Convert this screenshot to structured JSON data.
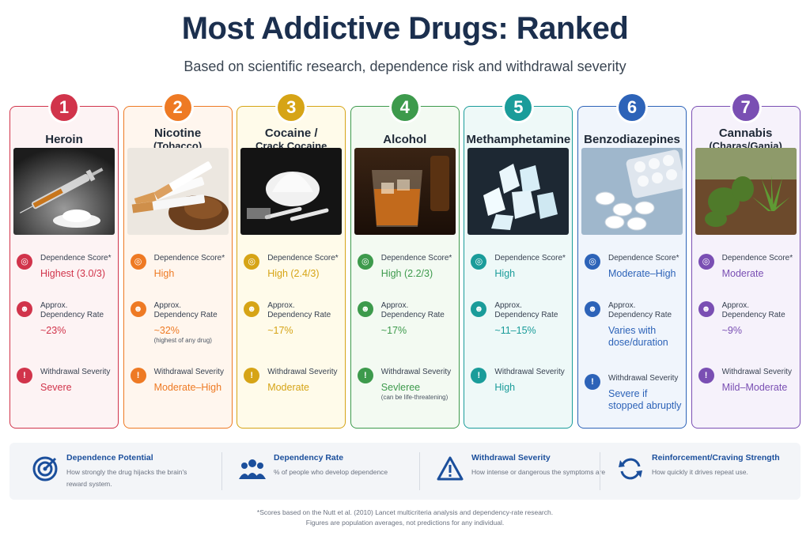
{
  "title": "Most Addictive Drugs: Ranked",
  "subtitle": "Based on scientific research, dependence risk and withdrawal severity",
  "metric_labels": {
    "dependence": "Dependence Score*",
    "rate_line1": "Approx.",
    "rate_line2": "Dependency Rate",
    "withdrawal": "Withdrawal Severity"
  },
  "drugs": [
    {
      "rank": "1",
      "name": "Heroin",
      "sub": "",
      "color": "#d1344b",
      "bg": "#fdf3f4",
      "dependence": "Highest (3.0/3)",
      "rate": "~23%",
      "rate_note": "",
      "withdrawal": "Severe",
      "withdrawal_note": "",
      "photo": "syringe-powder"
    },
    {
      "rank": "2",
      "name": "Nicotine",
      "sub": "(Tobacco)",
      "color": "#ee7a24",
      "bg": "#fff6ee",
      "dependence": "High",
      "rate": "~32%",
      "rate_note": "(highest of any drug)",
      "withdrawal": "Moderate–High",
      "withdrawal_note": "",
      "photo": "cigarettes"
    },
    {
      "rank": "3",
      "name": "Cocaine /",
      "sub": "Crack Cocaine",
      "color": "#d6a416",
      "bg": "#fffbea",
      "dependence": "High (2.4/3)",
      "rate": "~17%",
      "rate_note": "",
      "withdrawal": "Moderate",
      "withdrawal_note": "",
      "photo": "white-powder"
    },
    {
      "rank": "4",
      "name": "Alcohol",
      "sub": "",
      "color": "#3d9a4c",
      "bg": "#f3faf2",
      "dependence": "High (2.2/3)",
      "rate": "~17%",
      "rate_note": "",
      "withdrawal": "Sevleree",
      "withdrawal_note": "(can be life-threatening)",
      "photo": "whiskey-glass"
    },
    {
      "rank": "5",
      "name": "Methamphetamine",
      "sub": "",
      "color": "#1a9c9a",
      "bg": "#eef9f8",
      "dependence": "High",
      "rate": "~11–15%",
      "rate_note": "",
      "withdrawal": "High",
      "withdrawal_note": "",
      "photo": "crystals"
    },
    {
      "rank": "6",
      "name": "Benzodiazepines",
      "sub": "",
      "color": "#2d63b8",
      "bg": "#f0f5fc",
      "dependence": "Moderate–High",
      "rate": "Varies with dose/duration",
      "rate_note": "",
      "withdrawal": "Severe if stopped abruptly",
      "withdrawal_note": "",
      "photo": "pills"
    },
    {
      "rank": "7",
      "name": "Cannabis",
      "sub": "(Charas/Ganja)",
      "color": "#7a4fb3",
      "bg": "#f6f2fb",
      "dependence": "Moderate",
      "rate": "~9%",
      "rate_note": "",
      "withdrawal": "Mild–Moderate",
      "withdrawal_note": "",
      "photo": "cannabis-buds"
    }
  ],
  "legend": [
    {
      "title": "Dependence Potential",
      "desc": "How strongly the drug hijacks the brain's reward system.",
      "icon": "target-icon"
    },
    {
      "title": "Dependency Rate",
      "desc": "% of people who develop dependence",
      "icon": "people-icon"
    },
    {
      "title": "Withdrawal Severity",
      "desc": "How intense or dangerous the symptoms are",
      "icon": "warning-icon"
    },
    {
      "title": "Reinforcement/Craving Strength",
      "desc": "How quickly it drives repeat use.",
      "icon": "refresh-icon"
    }
  ],
  "footnote": {
    "line1": "*Scores based on the Nutt et al. (2010) Lancet multicriteria analysis and dependency-rate research.",
    "line2": "Figures are population averages, not predictions for any individual."
  }
}
